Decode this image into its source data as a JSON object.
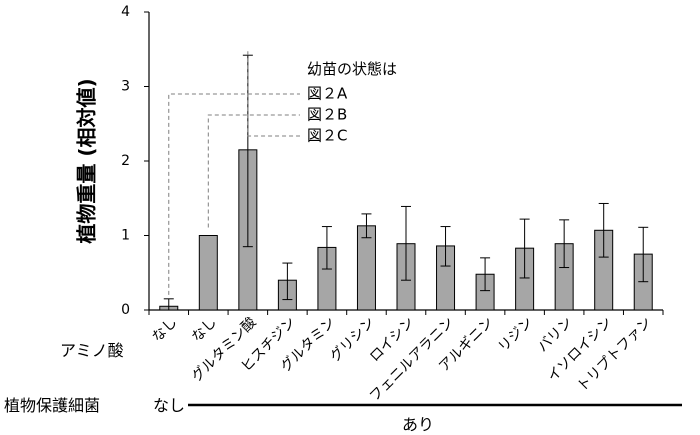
{
  "chart_data": {
    "type": "bar",
    "ylabel": "植物重量 (相対値)",
    "ylim": [
      0,
      4
    ],
    "yticks": [
      "0",
      "1",
      "2",
      "3",
      "4"
    ],
    "categories": [
      "なし",
      "なし",
      "グルタミン酸",
      "ヒスチジン",
      "グルタミン",
      "グリシン",
      "ロイシン",
      "フェニルアラニン",
      "アルギニン",
      "リジン",
      "バリン",
      "イソロイシン",
      "トリプトファン"
    ],
    "values": [
      0.05,
      1.0,
      2.15,
      0.4,
      0.84,
      1.13,
      0.89,
      0.86,
      0.48,
      0.83,
      0.89,
      1.07,
      0.75
    ],
    "err_low": [
      0.0,
      0.0,
      0.85,
      0.14,
      0.55,
      0.97,
      0.4,
      0.59,
      0.26,
      0.43,
      0.57,
      0.71,
      0.38
    ],
    "err_high": [
      0.15,
      0.0,
      3.42,
      0.63,
      1.12,
      1.29,
      1.39,
      1.12,
      0.7,
      1.22,
      1.21,
      1.43,
      1.11
    ],
    "bar_color": "#a6a6a6",
    "grid": false,
    "legend": "none",
    "annotation": {
      "title": "幼苗の状態は",
      "labels": [
        "図２A",
        "図２B",
        "図２C"
      ],
      "targets": [
        0,
        1,
        2
      ]
    }
  },
  "rows": {
    "amino_label": "アミノ酸",
    "bacteria_label": "植物保護細菌",
    "bacteria_none": "なし",
    "bacteria_present": "あり"
  }
}
